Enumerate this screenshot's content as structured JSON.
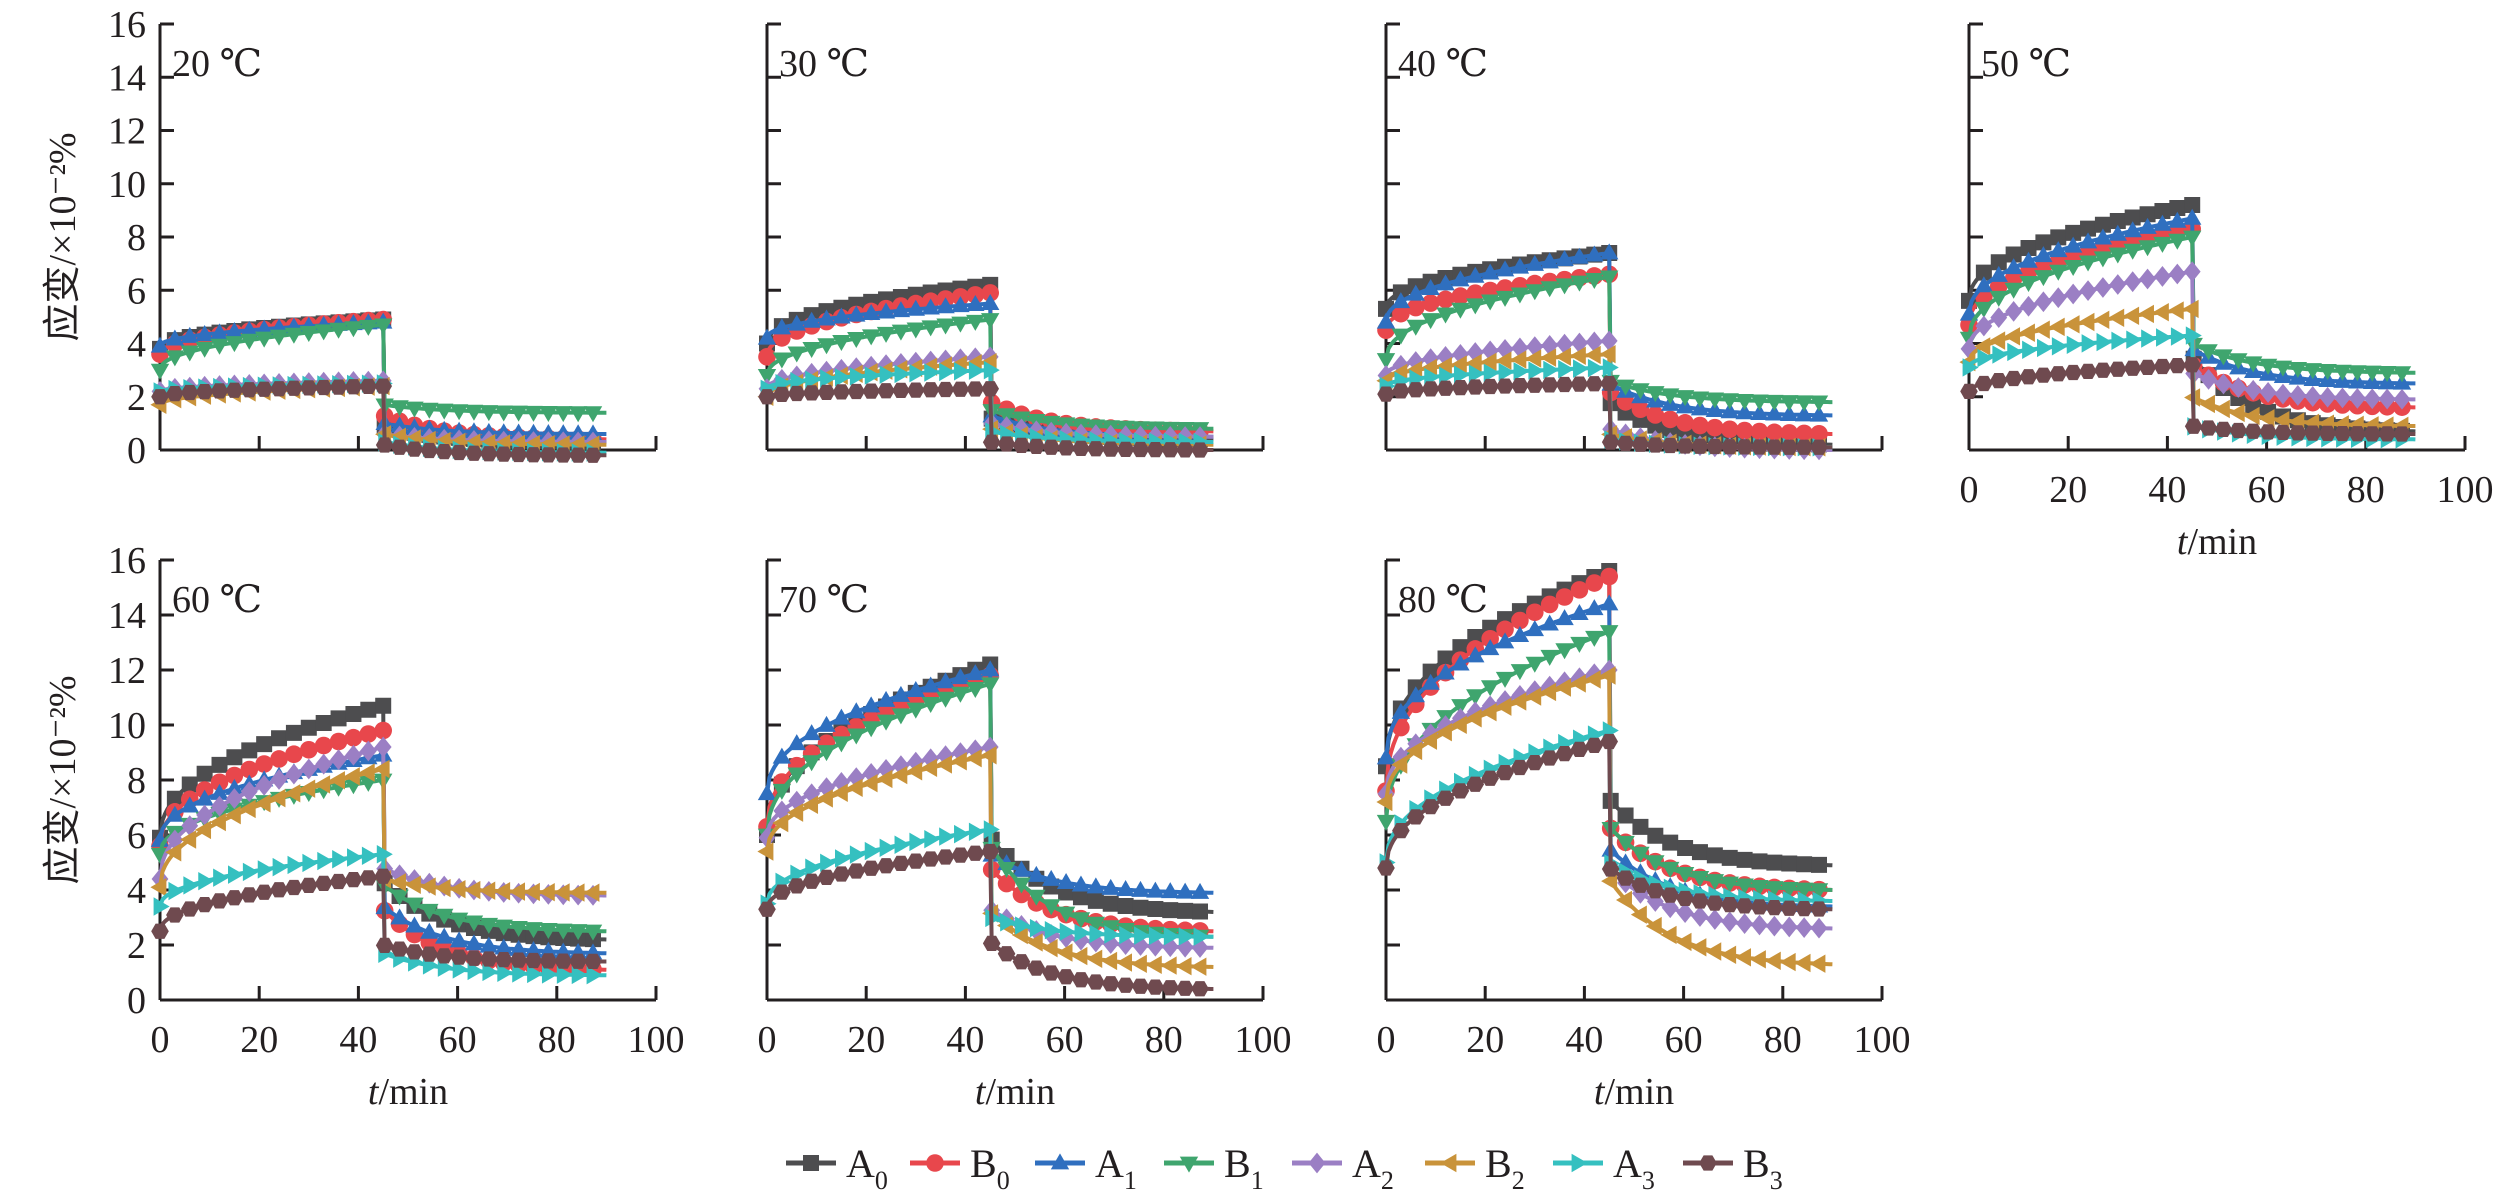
{
  "chart_data": {
    "type": "line",
    "title": "",
    "xlabel": "t/min",
    "xlabel_italic_part": "t",
    "xlabel_rest": "/min",
    "ylabel": "应变/×10⁻²%",
    "xlim": [
      0,
      100
    ],
    "ylim": [
      0,
      16
    ],
    "x_ticks": [
      0,
      20,
      40,
      60,
      80,
      100
    ],
    "y_ticks": [
      0,
      2,
      4,
      6,
      8,
      10,
      12,
      14,
      16
    ],
    "grid": false,
    "legend_position": "bottom-center",
    "load_phase_end_min": 45,
    "test_end_min": 90,
    "sample_interval_min": 3,
    "series_meta": [
      {
        "key": "A0",
        "letter": "A",
        "sub": "0",
        "color": "#4d4d4f",
        "marker": "square"
      },
      {
        "key": "B0",
        "letter": "B",
        "sub": "0",
        "color": "#e8474c",
        "marker": "circle"
      },
      {
        "key": "A1",
        "letter": "A",
        "sub": "1",
        "color": "#2f6fbf",
        "marker": "triangle-up"
      },
      {
        "key": "B1",
        "letter": "B",
        "sub": "1",
        "color": "#3fa56e",
        "marker": "triangle-down"
      },
      {
        "key": "A2",
        "letter": "A",
        "sub": "2",
        "color": "#9b7fc4",
        "marker": "diamond"
      },
      {
        "key": "B2",
        "letter": "B",
        "sub": "2",
        "color": "#c9933a",
        "marker": "triangle-left"
      },
      {
        "key": "A3",
        "letter": "A",
        "sub": "3",
        "color": "#35c0c0",
        "marker": "triangle-right"
      },
      {
        "key": "B3",
        "letter": "B",
        "sub": "3",
        "color": "#6f4a4f",
        "marker": "hexagon"
      }
    ],
    "panels": [
      {
        "label": "20 ℃",
        "series": [
          {
            "name": "A0",
            "creep_start": 3.8,
            "creep_end": 4.9,
            "recovery_start": 0.9,
            "recovery_end": 0.3
          },
          {
            "name": "B0",
            "creep_start": 3.6,
            "creep_end": 4.9,
            "recovery_start": 1.3,
            "recovery_end": 0.4
          },
          {
            "name": "A1",
            "creep_start": 3.9,
            "creep_end": 4.8,
            "recovery_start": 1.0,
            "recovery_end": 0.6
          },
          {
            "name": "B1",
            "creep_start": 3.0,
            "creep_end": 4.7,
            "recovery_start": 1.7,
            "recovery_end": 1.4
          },
          {
            "name": "A2",
            "creep_start": 2.2,
            "creep_end": 2.6,
            "recovery_start": 0.6,
            "recovery_end": 0.3
          },
          {
            "name": "B2",
            "creep_start": 1.7,
            "creep_end": 2.4,
            "recovery_start": 0.6,
            "recovery_end": 0.2
          },
          {
            "name": "A3",
            "creep_start": 2.2,
            "creep_end": 2.5,
            "recovery_start": 0.3,
            "recovery_end": -0.1
          },
          {
            "name": "B3",
            "creep_start": 2.0,
            "creep_end": 2.4,
            "recovery_start": 0.2,
            "recovery_end": -0.2
          }
        ]
      },
      {
        "label": "30 ℃",
        "series": [
          {
            "name": "A0",
            "creep_start": 4.0,
            "creep_end": 6.2,
            "recovery_start": 1.2,
            "recovery_end": 0.4
          },
          {
            "name": "B0",
            "creep_start": 3.5,
            "creep_end": 5.9,
            "recovery_start": 1.8,
            "recovery_end": 0.7
          },
          {
            "name": "A1",
            "creep_start": 4.2,
            "creep_end": 5.5,
            "recovery_start": 1.3,
            "recovery_end": 0.5
          },
          {
            "name": "B1",
            "creep_start": 2.8,
            "creep_end": 4.9,
            "recovery_start": 1.5,
            "recovery_end": 0.8
          },
          {
            "name": "A2",
            "creep_start": 2.3,
            "creep_end": 3.5,
            "recovery_start": 1.0,
            "recovery_end": 0.5
          },
          {
            "name": "B2",
            "creep_start": 2.0,
            "creep_end": 3.3,
            "recovery_start": 0.8,
            "recovery_end": 0.2
          },
          {
            "name": "A3",
            "creep_start": 2.3,
            "creep_end": 3.0,
            "recovery_start": 0.7,
            "recovery_end": 0.3
          },
          {
            "name": "B3",
            "creep_start": 2.0,
            "creep_end": 2.3,
            "recovery_start": 0.3,
            "recovery_end": 0.0
          }
        ]
      },
      {
        "label": "40 ℃",
        "series": [
          {
            "name": "A0",
            "creep_start": 5.3,
            "creep_end": 7.4,
            "recovery_start": 1.8,
            "recovery_end": 0.2
          },
          {
            "name": "B0",
            "creep_start": 4.5,
            "creep_end": 6.6,
            "recovery_start": 2.2,
            "recovery_end": 0.6
          },
          {
            "name": "A1",
            "creep_start": 4.8,
            "creep_end": 7.4,
            "recovery_start": 2.5,
            "recovery_end": 1.3
          },
          {
            "name": "B1",
            "creep_start": 3.4,
            "creep_end": 6.5,
            "recovery_start": 2.6,
            "recovery_end": 1.8
          },
          {
            "name": "A2",
            "creep_start": 2.8,
            "creep_end": 4.1,
            "recovery_start": 0.8,
            "recovery_end": 0.0
          },
          {
            "name": "B2",
            "creep_start": 2.6,
            "creep_end": 3.6,
            "recovery_start": 0.6,
            "recovery_end": 0.1
          },
          {
            "name": "A3",
            "creep_start": 2.4,
            "creep_end": 3.1,
            "recovery_start": 0.4,
            "recovery_end": 0.1
          },
          {
            "name": "B3",
            "creep_start": 2.1,
            "creep_end": 2.5,
            "recovery_start": 0.3,
            "recovery_end": 0.1
          }
        ]
      },
      {
        "label": "50 ℃",
        "series": [
          {
            "name": "A0",
            "creep_start": 5.6,
            "creep_end": 9.2,
            "recovery_start": 3.5,
            "recovery_end": 0.7
          },
          {
            "name": "B0",
            "creep_start": 4.7,
            "creep_end": 8.3,
            "recovery_start": 3.2,
            "recovery_end": 1.6
          },
          {
            "name": "A1",
            "creep_start": 5.1,
            "creep_end": 8.7,
            "recovery_start": 3.8,
            "recovery_end": 2.5
          },
          {
            "name": "B1",
            "creep_start": 4.2,
            "creep_end": 8.0,
            "recovery_start": 4.0,
            "recovery_end": 2.9
          },
          {
            "name": "A2",
            "creep_start": 3.8,
            "creep_end": 6.7,
            "recovery_start": 2.9,
            "recovery_end": 1.9
          },
          {
            "name": "B2",
            "creep_start": 3.3,
            "creep_end": 5.3,
            "recovery_start": 2.0,
            "recovery_end": 0.9
          },
          {
            "name": "A3",
            "creep_start": 3.1,
            "creep_end": 4.3,
            "recovery_start": 0.9,
            "recovery_end": 0.4
          },
          {
            "name": "B3",
            "creep_start": 2.2,
            "creep_end": 3.2,
            "recovery_start": 0.9,
            "recovery_end": 0.6
          }
        ]
      },
      {
        "label": "60 ℃",
        "series": [
          {
            "name": "A0",
            "creep_start": 5.9,
            "creep_end": 10.7,
            "recovery_start": 4.3,
            "recovery_end": 2.2
          },
          {
            "name": "B0",
            "creep_start": 5.6,
            "creep_end": 9.8,
            "recovery_start": 3.3,
            "recovery_end": 1.1
          },
          {
            "name": "A1",
            "creep_start": 5.8,
            "creep_end": 8.9,
            "recovery_start": 3.4,
            "recovery_end": 1.7
          },
          {
            "name": "B1",
            "creep_start": 5.3,
            "creep_end": 8.0,
            "recovery_start": 4.2,
            "recovery_end": 2.5
          },
          {
            "name": "A2",
            "creep_start": 4.4,
            "creep_end": 9.2,
            "recovery_start": 4.8,
            "recovery_end": 3.8
          },
          {
            "name": "B2",
            "creep_start": 4.1,
            "creep_end": 8.4,
            "recovery_start": 4.4,
            "recovery_end": 3.9
          },
          {
            "name": "A3",
            "creep_start": 3.4,
            "creep_end": 5.3,
            "recovery_start": 1.7,
            "recovery_end": 0.9
          },
          {
            "name": "B3",
            "creep_start": 2.5,
            "creep_end": 4.5,
            "recovery_start": 2.0,
            "recovery_end": 1.4
          }
        ]
      },
      {
        "label": "70 ℃",
        "series": [
          {
            "name": "A0",
            "creep_start": 6.0,
            "creep_end": 12.2,
            "recovery_start": 5.9,
            "recovery_end": 3.2
          },
          {
            "name": "B0",
            "creep_start": 6.3,
            "creep_end": 11.8,
            "recovery_start": 4.8,
            "recovery_end": 2.5
          },
          {
            "name": "A1",
            "creep_start": 7.5,
            "creep_end": 12.0,
            "recovery_start": 5.3,
            "recovery_end": 3.9
          },
          {
            "name": "B1",
            "creep_start": 6.0,
            "creep_end": 11.5,
            "recovery_start": 5.6,
            "recovery_end": 2.3
          },
          {
            "name": "A2",
            "creep_start": 5.9,
            "creep_end": 9.2,
            "recovery_start": 3.3,
            "recovery_end": 1.9
          },
          {
            "name": "B2",
            "creep_start": 5.4,
            "creep_end": 8.9,
            "recovery_start": 3.2,
            "recovery_end": 1.2
          },
          {
            "name": "A3",
            "creep_start": 3.5,
            "creep_end": 6.2,
            "recovery_start": 3.0,
            "recovery_end": 2.3
          },
          {
            "name": "B3",
            "creep_start": 3.3,
            "creep_end": 5.4,
            "recovery_start": 2.1,
            "recovery_end": 0.4
          }
        ]
      },
      {
        "label": "80 ℃",
        "series": [
          {
            "name": "A0",
            "creep_start": 8.5,
            "creep_end": 15.6,
            "recovery_start": 7.3,
            "recovery_end": 4.9
          },
          {
            "name": "B0",
            "creep_start": 7.6,
            "creep_end": 15.4,
            "recovery_start": 6.3,
            "recovery_end": 4.0
          },
          {
            "name": "A1",
            "creep_start": 8.8,
            "creep_end": 14.4,
            "recovery_start": 5.5,
            "recovery_end": 3.4
          },
          {
            "name": "B1",
            "creep_start": 6.5,
            "creep_end": 13.4,
            "recovery_start": 6.3,
            "recovery_end": 4.0
          },
          {
            "name": "A2",
            "creep_start": 7.5,
            "creep_end": 12.0,
            "recovery_start": 4.8,
            "recovery_end": 2.6
          },
          {
            "name": "B2",
            "creep_start": 7.2,
            "creep_end": 11.8,
            "recovery_start": 4.4,
            "recovery_end": 1.3
          },
          {
            "name": "A3",
            "creep_start": 5.0,
            "creep_end": 9.8,
            "recovery_start": 5.0,
            "recovery_end": 3.6
          },
          {
            "name": "B3",
            "creep_start": 4.8,
            "creep_end": 9.4,
            "recovery_start": 4.8,
            "recovery_end": 3.3
          }
        ]
      }
    ]
  }
}
